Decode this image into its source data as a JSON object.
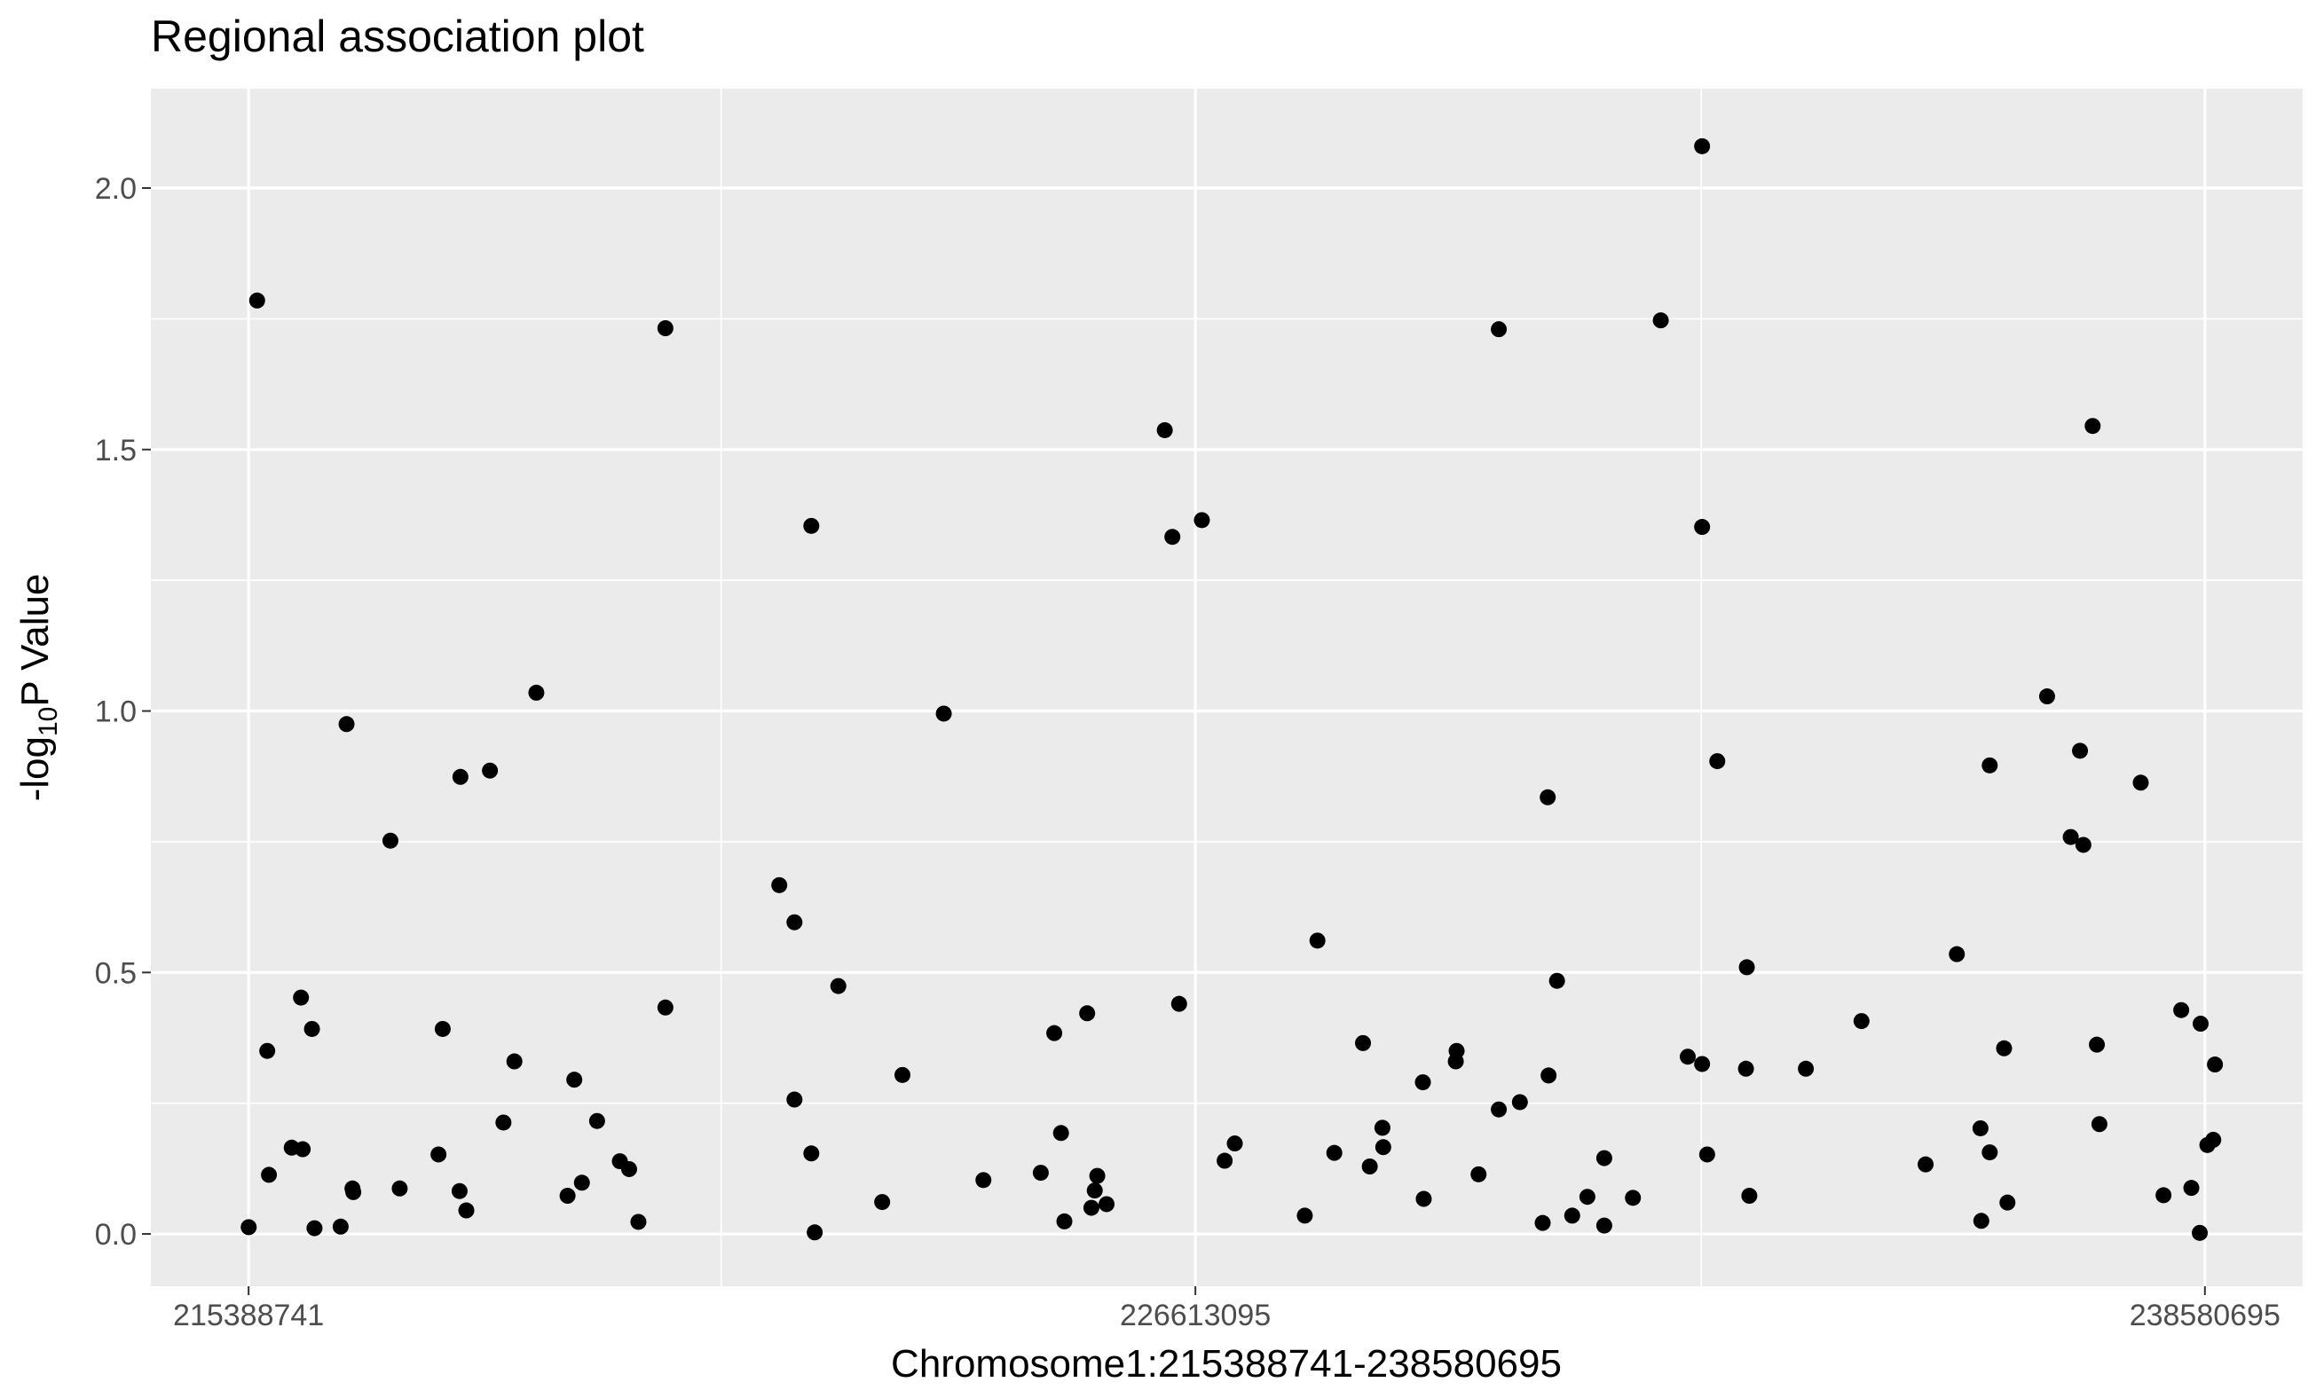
{
  "chart_data": {
    "type": "scatter",
    "title": "Regional association plot",
    "xlabel": "Chromosome1:215388741-238580695",
    "ylabel_main": "-log",
    "ylabel_sub": "10",
    "ylabel_tail": "P Value",
    "xlim": [
      214230000,
      239740000
    ],
    "ylim": [
      -0.1,
      2.19
    ],
    "x_ticks": [
      {
        "value": 215388741,
        "label": "215388741"
      },
      {
        "value": 226613095,
        "label": "226613095"
      },
      {
        "value": 238580695,
        "label": "238580695"
      }
    ],
    "x_minor_ticks": [
      220990000,
      232610000
    ],
    "y_ticks": [
      {
        "value": 0.0,
        "label": "0.0"
      },
      {
        "value": 0.5,
        "label": "0.5"
      },
      {
        "value": 1.0,
        "label": "1.0"
      },
      {
        "value": 1.5,
        "label": "1.5"
      },
      {
        "value": 2.0,
        "label": "2.0"
      }
    ],
    "y_minor_ticks": [
      0.25,
      0.75,
      1.25,
      1.75
    ],
    "grid": true,
    "colors": {
      "panel_background": "#ebebeb",
      "grid_line": "#ffffff",
      "point": "#000000",
      "tick_label": "#4d4d4d",
      "tick_mark": "#333333"
    },
    "points": [
      [
        215390000,
        0.013
      ],
      [
        215490000,
        1.785
      ],
      [
        215610000,
        0.35
      ],
      [
        215630000,
        0.113
      ],
      [
        215900000,
        0.165
      ],
      [
        216010000,
        0.452
      ],
      [
        216030000,
        0.162
      ],
      [
        216140000,
        0.392
      ],
      [
        216170000,
        0.011
      ],
      [
        216480000,
        0.014
      ],
      [
        216550000,
        0.975
      ],
      [
        216620000,
        0.087
      ],
      [
        216630000,
        0.08
      ],
      [
        217070000,
        0.752
      ],
      [
        217180000,
        0.087
      ],
      [
        217640000,
        0.152
      ],
      [
        217690000,
        0.392
      ],
      [
        217890000,
        0.082
      ],
      [
        217900000,
        0.874
      ],
      [
        217970000,
        0.045
      ],
      [
        218250000,
        0.886
      ],
      [
        218410000,
        0.213
      ],
      [
        218540000,
        0.33
      ],
      [
        218800000,
        1.035
      ],
      [
        219170000,
        0.073
      ],
      [
        219250000,
        0.295
      ],
      [
        219340000,
        0.098
      ],
      [
        219520000,
        0.216
      ],
      [
        219790000,
        0.139
      ],
      [
        219900000,
        0.124
      ],
      [
        220010000,
        0.023
      ],
      [
        220330000,
        1.732
      ],
      [
        220330000,
        0.433
      ],
      [
        221680000,
        0.667
      ],
      [
        221860000,
        0.596
      ],
      [
        221860000,
        0.257
      ],
      [
        222060000,
        0.154
      ],
      [
        222060000,
        1.354
      ],
      [
        222100000,
        0.003
      ],
      [
        222380000,
        0.474
      ],
      [
        222900000,
        0.061
      ],
      [
        223140000,
        0.304
      ],
      [
        223630000,
        0.995
      ],
      [
        224100000,
        0.103
      ],
      [
        224780000,
        0.117
      ],
      [
        224940000,
        0.384
      ],
      [
        225020000,
        0.193
      ],
      [
        225060000,
        0.024
      ],
      [
        225330000,
        0.422
      ],
      [
        225380000,
        0.05
      ],
      [
        225420000,
        0.083
      ],
      [
        225450000,
        0.111
      ],
      [
        225560000,
        0.057
      ],
      [
        226250000,
        1.537
      ],
      [
        226340000,
        1.333
      ],
      [
        226420000,
        0.44
      ],
      [
        226690000,
        1.365
      ],
      [
        226960000,
        0.14
      ],
      [
        227080000,
        0.173
      ],
      [
        227910000,
        0.035
      ],
      [
        228060000,
        0.561
      ],
      [
        228260000,
        0.155
      ],
      [
        228600000,
        0.365
      ],
      [
        228680000,
        0.129
      ],
      [
        228830000,
        0.203
      ],
      [
        228840000,
        0.166
      ],
      [
        229310000,
        0.29
      ],
      [
        229320000,
        0.067
      ],
      [
        229700000,
        0.33
      ],
      [
        229710000,
        0.35
      ],
      [
        229970000,
        0.114
      ],
      [
        230210000,
        1.73
      ],
      [
        230210000,
        0.238
      ],
      [
        230460000,
        0.252
      ],
      [
        230730000,
        0.021
      ],
      [
        230790000,
        0.835
      ],
      [
        230800000,
        0.303
      ],
      [
        230900000,
        0.484
      ],
      [
        231080000,
        0.035
      ],
      [
        231260000,
        0.071
      ],
      [
        231460000,
        0.145
      ],
      [
        231460000,
        0.016
      ],
      [
        231800000,
        0.069
      ],
      [
        232130000,
        1.747
      ],
      [
        232450000,
        0.339
      ],
      [
        232620000,
        0.325
      ],
      [
        232680000,
        0.152
      ],
      [
        232800000,
        0.904
      ],
      [
        232620000,
        2.08
      ],
      [
        232620000,
        1.352
      ],
      [
        233150000,
        0.51
      ],
      [
        233140000,
        0.316
      ],
      [
        233180000,
        0.073
      ],
      [
        233850000,
        0.316
      ],
      [
        234510000,
        0.407
      ],
      [
        235270000,
        0.133
      ],
      [
        235640000,
        0.535
      ],
      [
        235920000,
        0.202
      ],
      [
        235930000,
        0.025
      ],
      [
        236030000,
        0.156
      ],
      [
        236030000,
        0.896
      ],
      [
        236200000,
        0.355
      ],
      [
        236240000,
        0.06
      ],
      [
        236710000,
        1.028
      ],
      [
        236990000,
        0.759
      ],
      [
        237100000,
        0.924
      ],
      [
        237140000,
        0.744
      ],
      [
        237250000,
        1.545
      ],
      [
        237300000,
        0.362
      ],
      [
        237330000,
        0.21
      ],
      [
        237820000,
        0.863
      ],
      [
        238090000,
        0.074
      ],
      [
        238300000,
        0.428
      ],
      [
        238420000,
        0.088
      ],
      [
        238530000,
        0.402
      ],
      [
        238520000,
        0.002
      ],
      [
        238610000,
        0.17
      ],
      [
        238680000,
        0.18
      ],
      [
        238700000,
        0.324
      ]
    ]
  }
}
